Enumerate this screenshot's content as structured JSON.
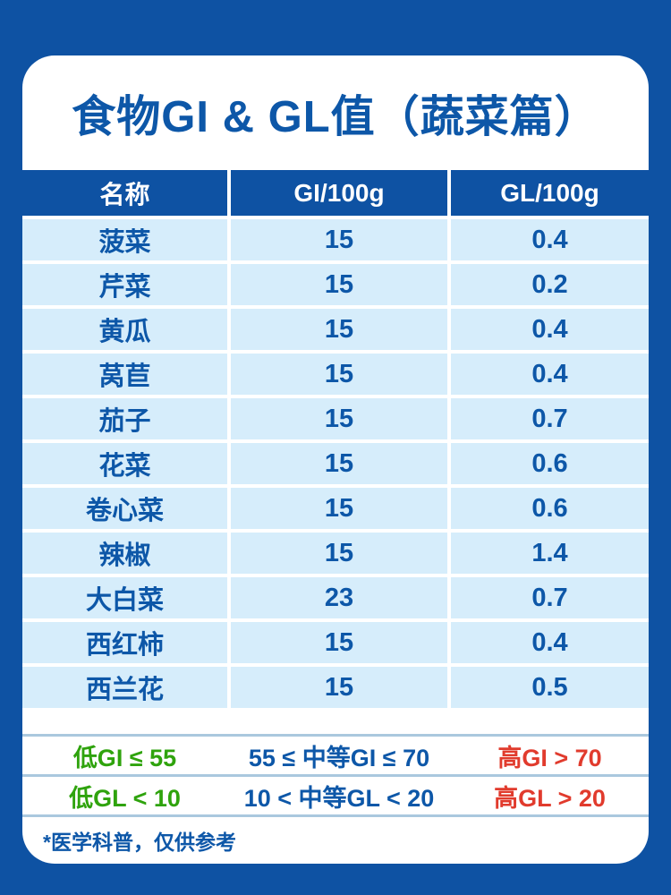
{
  "colors": {
    "page_background": "#0e52a3",
    "card_background": "#ffffff",
    "table_header_bg": "#0e52a3",
    "table_header_text": "#ffffff",
    "row_bg": "#d6edfb",
    "text_blue": "#0d57a8",
    "legend_green": "#2fa30d",
    "legend_blue": "#0d57a8",
    "legend_red": "#e13b2d",
    "separator_line": "#aac8de"
  },
  "title": "食物GI & GL值（蔬菜篇）",
  "table": {
    "headers": [
      "名称",
      "GI/100g",
      "GL/100g"
    ],
    "rows": [
      {
        "name": "菠菜",
        "gi": "15",
        "gl": "0.4"
      },
      {
        "name": "芹菜",
        "gi": "15",
        "gl": "0.2"
      },
      {
        "name": "黄瓜",
        "gi": "15",
        "gl": "0.4"
      },
      {
        "name": "莴苣",
        "gi": "15",
        "gl": "0.4"
      },
      {
        "name": "茄子",
        "gi": "15",
        "gl": "0.7"
      },
      {
        "name": "花菜",
        "gi": "15",
        "gl": "0.6"
      },
      {
        "name": "卷心菜",
        "gi": "15",
        "gl": "0.6"
      },
      {
        "name": "辣椒",
        "gi": "15",
        "gl": "1.4"
      },
      {
        "name": "大白菜",
        "gi": "23",
        "gl": "0.7"
      },
      {
        "name": "西红柿",
        "gi": "15",
        "gl": "0.4"
      },
      {
        "name": "西兰花",
        "gi": "15",
        "gl": "0.5"
      }
    ]
  },
  "legend": {
    "gi_row": [
      {
        "label": "低GI ≤ 55",
        "color": "#2fa30d"
      },
      {
        "label": "55 ≤ 中等GI ≤ 70",
        "color": "#0d57a8"
      },
      {
        "label": "高GI > 70",
        "color": "#e13b2d"
      }
    ],
    "gl_row": [
      {
        "label": "低GL < 10",
        "color": "#2fa30d"
      },
      {
        "label": "10 < 中等GL < 20",
        "color": "#0d57a8"
      },
      {
        "label": "高GL > 20",
        "color": "#e13b2d"
      }
    ]
  },
  "footnote": "*医学科普，仅供参考",
  "chart_data": {
    "type": "table",
    "title": "食物GI & GL值（蔬菜篇）",
    "columns": [
      "名称",
      "GI/100g",
      "GL/100g"
    ],
    "rows": [
      [
        "菠菜",
        15,
        0.4
      ],
      [
        "芹菜",
        15,
        0.2
      ],
      [
        "黄瓜",
        15,
        0.4
      ],
      [
        "莴苣",
        15,
        0.4
      ],
      [
        "茄子",
        15,
        0.7
      ],
      [
        "花菜",
        15,
        0.6
      ],
      [
        "卷心菜",
        15,
        0.6
      ],
      [
        "辣椒",
        15,
        1.4
      ],
      [
        "大白菜",
        23,
        0.7
      ],
      [
        "西红柿",
        15,
        0.4
      ],
      [
        "西兰花",
        15,
        0.5
      ]
    ],
    "thresholds": {
      "gi": {
        "low": "低GI ≤ 55",
        "medium": "55 ≤ 中等GI ≤ 70",
        "high": "高GI > 70"
      },
      "gl": {
        "low": "低GL < 10",
        "medium": "10 < 中等GL < 20",
        "high": "高GL > 20"
      }
    },
    "footnote": "*医学科普，仅供参考"
  }
}
